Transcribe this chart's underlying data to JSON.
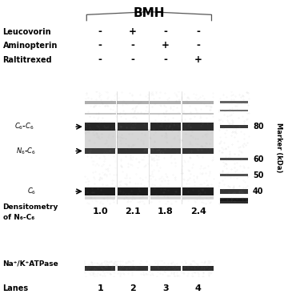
{
  "title": "BMH",
  "row1_label": "Leucovorin",
  "row2_label": "Aminopterin",
  "row3_label": "Raltitrexed",
  "lane_labels": [
    "1",
    "2",
    "3",
    "4"
  ],
  "densitometry_label1": "Densitometry",
  "densitometry_label2": "of N₆-C₆",
  "densitometry_values": [
    "1.0",
    "2.1",
    "1.8",
    "2.4"
  ],
  "band_label_c6c6": "C₆-C₆",
  "band_label_n6c6": "N₆-C₆",
  "band_label_c6": "C₆",
  "marker_label": "Marker (kDa)",
  "marker_values": [
    80,
    60,
    50,
    40
  ],
  "na_k_label": "Na⁺/K⁺ATPase",
  "lanes_label": "Lanes",
  "signs_leucovorin": [
    "-",
    "+",
    "-",
    "-"
  ],
  "signs_aminopterin": [
    "-",
    "-",
    "+",
    "-"
  ],
  "signs_raltitrexed": [
    "-",
    "-",
    "-",
    "+"
  ],
  "bg_color": "#ffffff"
}
